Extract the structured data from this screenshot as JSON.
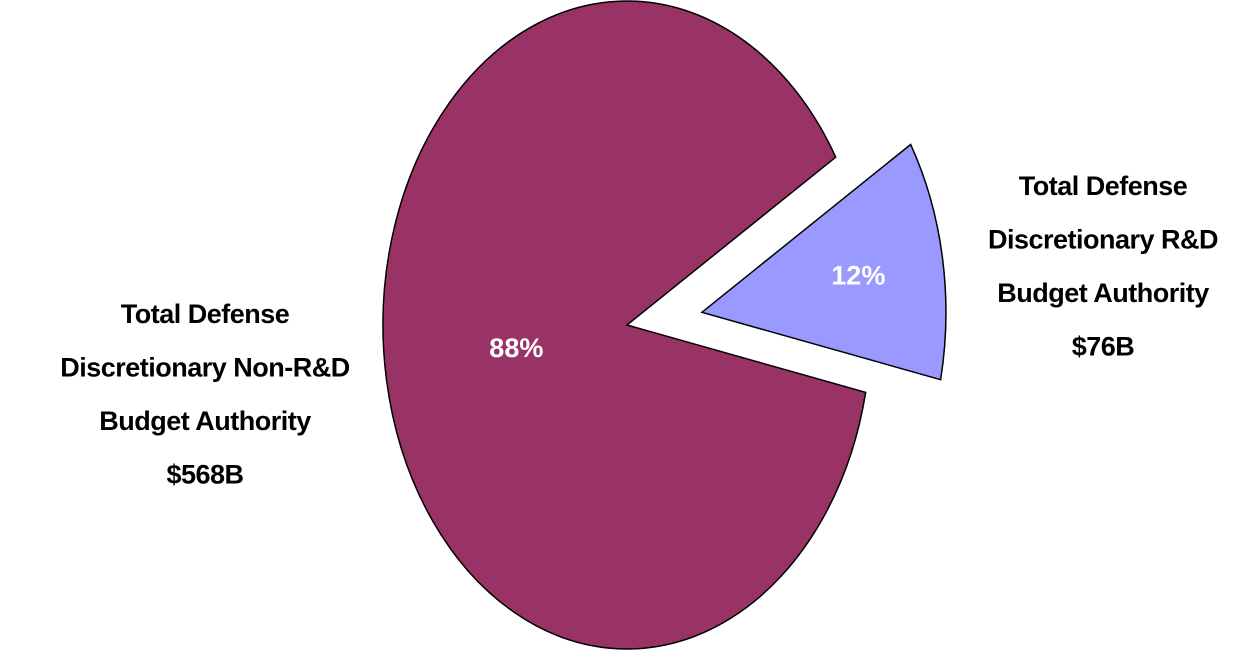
{
  "chart_data": {
    "type": "pie",
    "categories": [
      [
        "Total Defense",
        "Discretionary Non-R&D",
        "Budget Authority",
        "$568B"
      ],
      [
        "Total Defense",
        "Discretionary R&D",
        "Budget Authority",
        "$76B"
      ]
    ],
    "values": [
      88,
      12
    ],
    "value_labels": [
      "88%",
      "12%"
    ],
    "colors": [
      "#993366",
      "#9999ff"
    ]
  }
}
